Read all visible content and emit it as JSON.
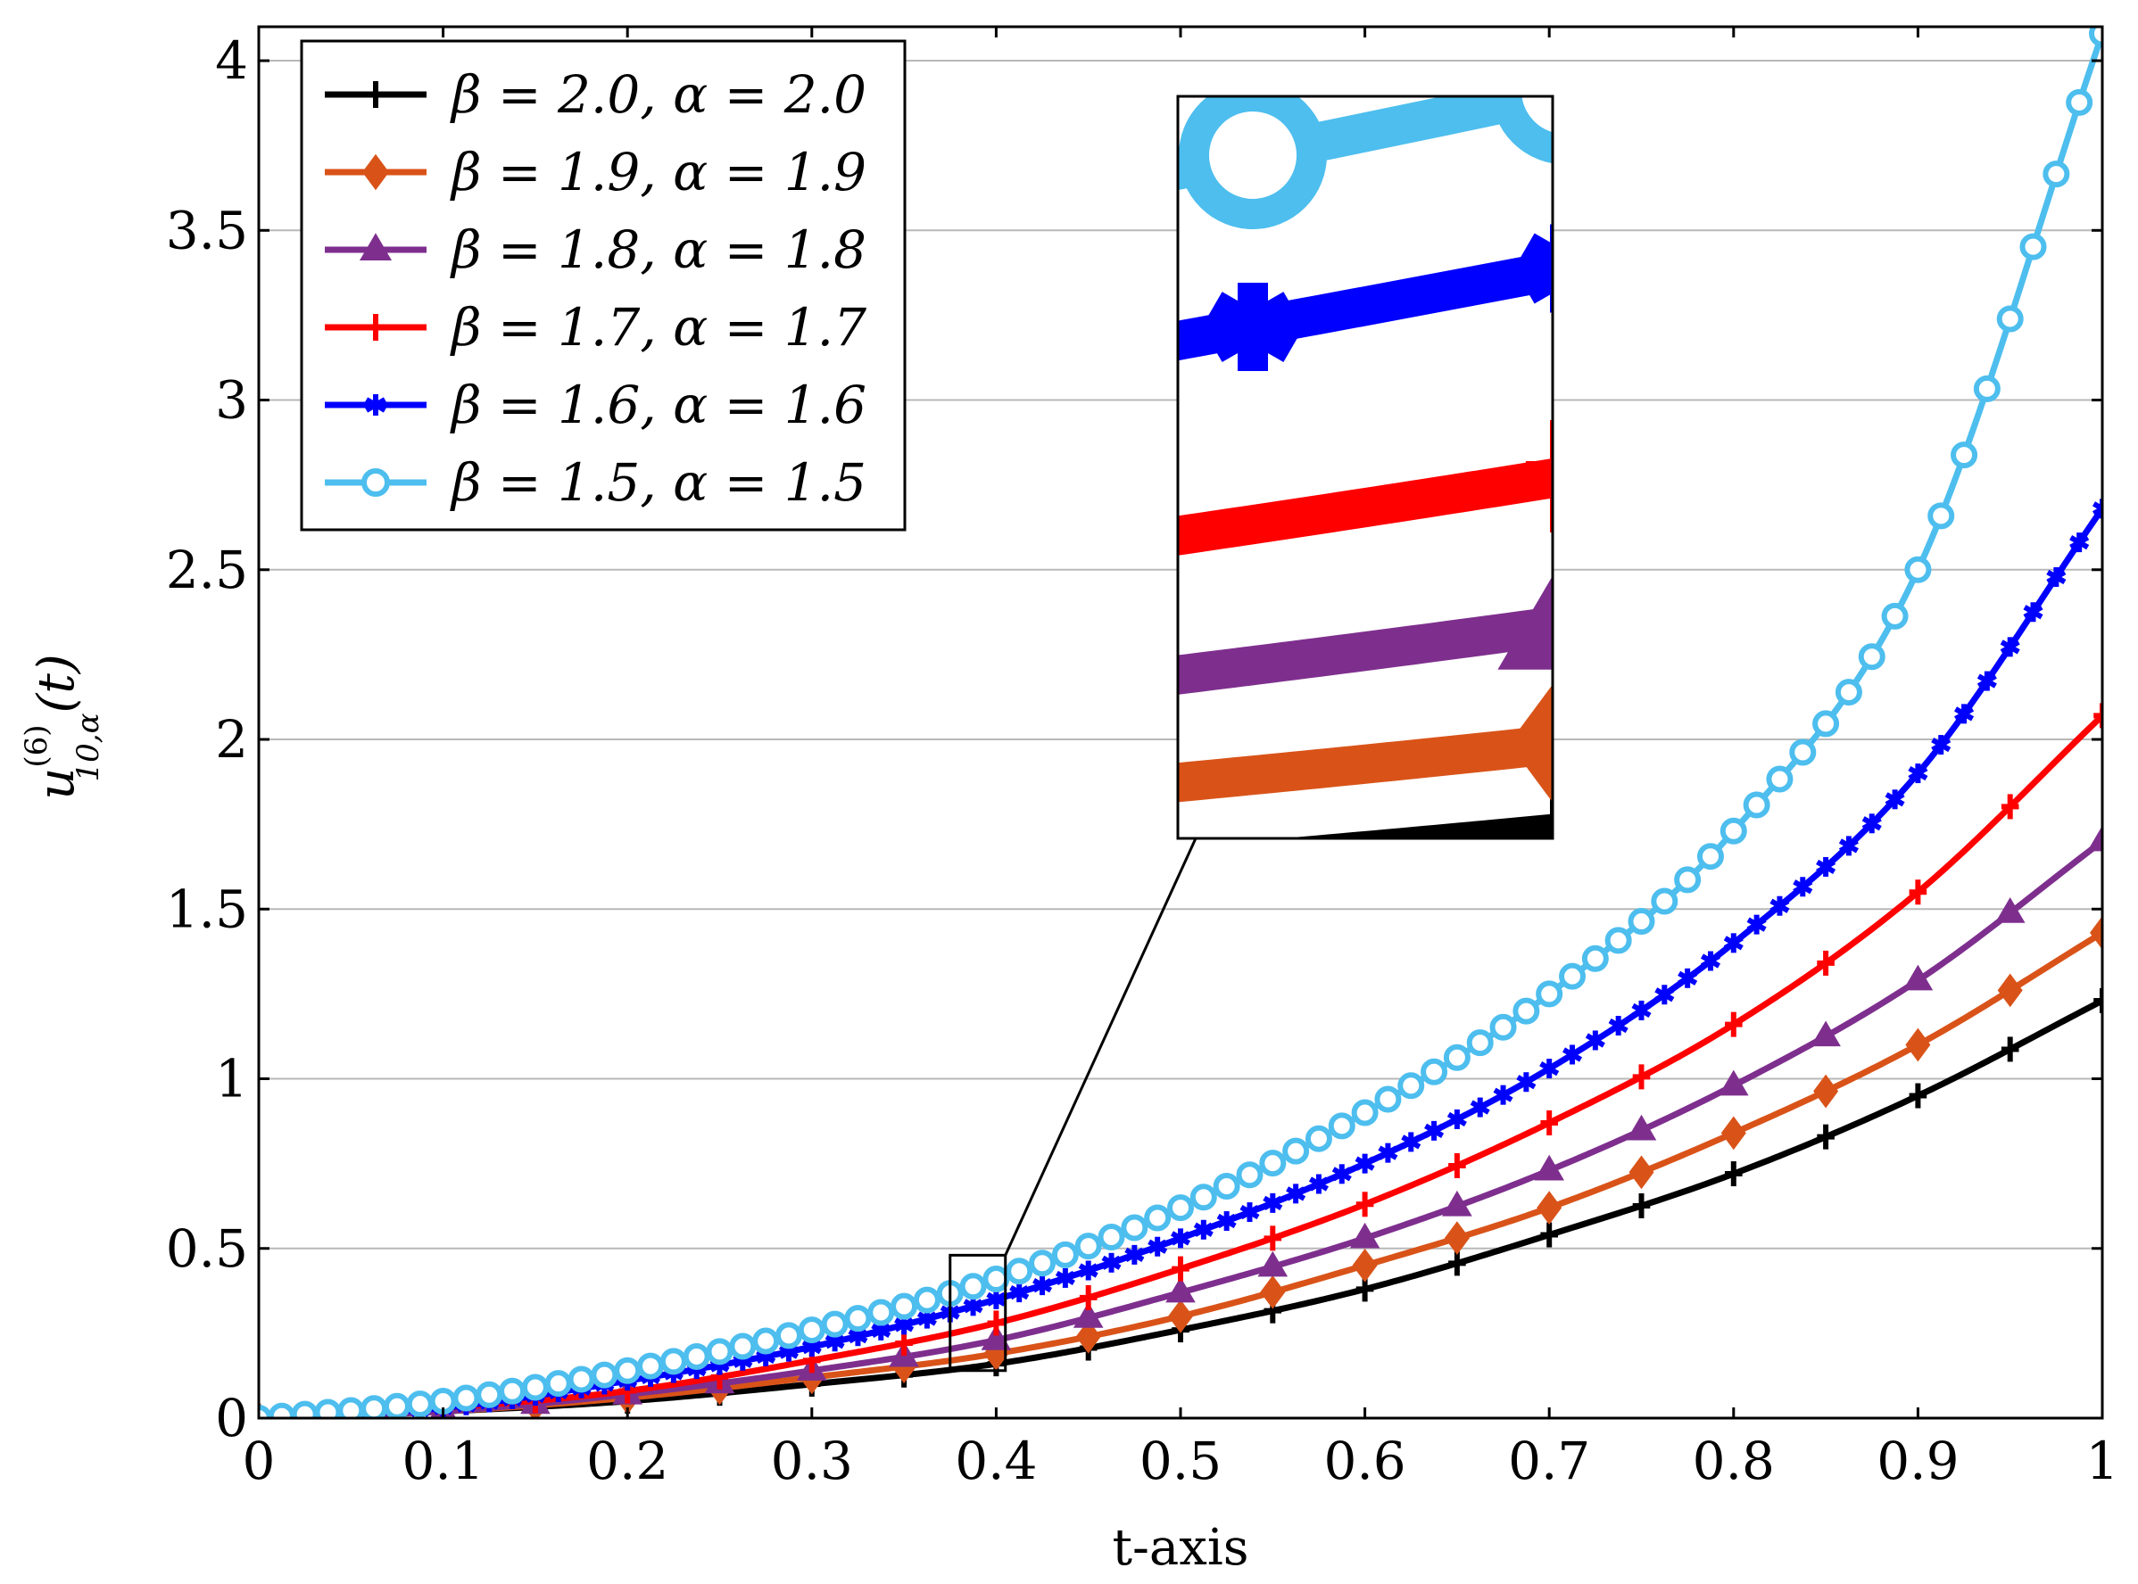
{
  "chart_data": {
    "type": "line",
    "title": "",
    "xlabel": "t-axis",
    "ylabel": "u(6)10,α(t)",
    "ylabel_parts": {
      "base": "u",
      "superscript": "(6)",
      "subscript": "10,α",
      "arg": "(t)"
    },
    "xlim": [
      0,
      1
    ],
    "ylim": [
      0,
      4.1
    ],
    "xticks": [
      0,
      0.1,
      0.2,
      0.3,
      0.4,
      0.5,
      0.6,
      0.7,
      0.8,
      0.9,
      1
    ],
    "xtick_labels": [
      "0",
      "0.1",
      "0.2",
      "0.3",
      "0.4",
      "0.5",
      "0.6",
      "0.7",
      "0.8",
      "0.9",
      "1"
    ],
    "yticks": [
      0,
      0.5,
      1,
      1.5,
      2,
      2.5,
      3,
      3.5,
      4
    ],
    "ytick_labels": [
      "0",
      "0.5",
      "1",
      "1.5",
      "2",
      "2.5",
      "3",
      "3.5",
      "4"
    ],
    "grid": "horizontal",
    "legend_position": "top-left",
    "inset": {
      "zoom_x": [
        0.375,
        0.405
      ],
      "zoom_y": [
        0.14,
        0.48
      ],
      "placement": "upper-middle"
    },
    "series": [
      {
        "name": "β = 2.0, α = 2.0",
        "color": "#000000",
        "marker": "plus",
        "marker_step": 0.05,
        "x": [
          0,
          0.1,
          0.2,
          0.3,
          0.4,
          0.5,
          0.6,
          0.7,
          0.8,
          0.9,
          1.0
        ],
        "y": [
          0,
          0.02,
          0.05,
          0.1,
          0.16,
          0.26,
          0.38,
          0.54,
          0.72,
          0.95,
          1.23
        ]
      },
      {
        "name": "β = 1.9, α = 1.9",
        "color": "#D95319",
        "marker": "diamond",
        "marker_step": 0.05,
        "x": [
          0,
          0.1,
          0.2,
          0.3,
          0.4,
          0.5,
          0.6,
          0.7,
          0.8,
          0.9,
          1.0
        ],
        "y": [
          0,
          0.02,
          0.06,
          0.12,
          0.19,
          0.3,
          0.45,
          0.62,
          0.84,
          1.1,
          1.43
        ]
      },
      {
        "name": "β = 1.8, α = 1.8",
        "color": "#7E2F8E",
        "marker": "triangle",
        "marker_step": 0.05,
        "x": [
          0,
          0.1,
          0.2,
          0.3,
          0.4,
          0.5,
          0.6,
          0.7,
          0.8,
          0.9,
          1.0
        ],
        "y": [
          0,
          0.02,
          0.07,
          0.14,
          0.23,
          0.37,
          0.53,
          0.73,
          0.98,
          1.29,
          1.7
        ]
      },
      {
        "name": "β = 1.7, α = 1.7",
        "color": "#FF0000",
        "marker": "plus",
        "marker_step": 0.05,
        "x": [
          0,
          0.1,
          0.2,
          0.3,
          0.4,
          0.5,
          0.6,
          0.7,
          0.8,
          0.9,
          1.0
        ],
        "y": [
          0,
          0.03,
          0.08,
          0.17,
          0.28,
          0.44,
          0.63,
          0.87,
          1.16,
          1.55,
          2.07
        ]
      },
      {
        "name": "β = 1.6, α = 1.6",
        "color": "#0000FF",
        "marker": "asterisk",
        "marker_step": 0.0125,
        "x": [
          0,
          0.1,
          0.2,
          0.3,
          0.4,
          0.5,
          0.6,
          0.7,
          0.8,
          0.9,
          1.0
        ],
        "y": [
          0,
          0.03,
          0.11,
          0.21,
          0.35,
          0.53,
          0.75,
          1.03,
          1.4,
          1.9,
          2.68
        ]
      },
      {
        "name": "β = 1.5, α = 1.5",
        "color": "#4DBEEE",
        "marker": "circle",
        "marker_step": 0.0125,
        "x": [
          0,
          0.1,
          0.2,
          0.3,
          0.4,
          0.5,
          0.6,
          0.7,
          0.8,
          0.9,
          1.0
        ],
        "y": [
          0,
          0.05,
          0.14,
          0.26,
          0.41,
          0.62,
          0.9,
          1.25,
          1.73,
          2.5,
          4.08
        ]
      }
    ]
  }
}
